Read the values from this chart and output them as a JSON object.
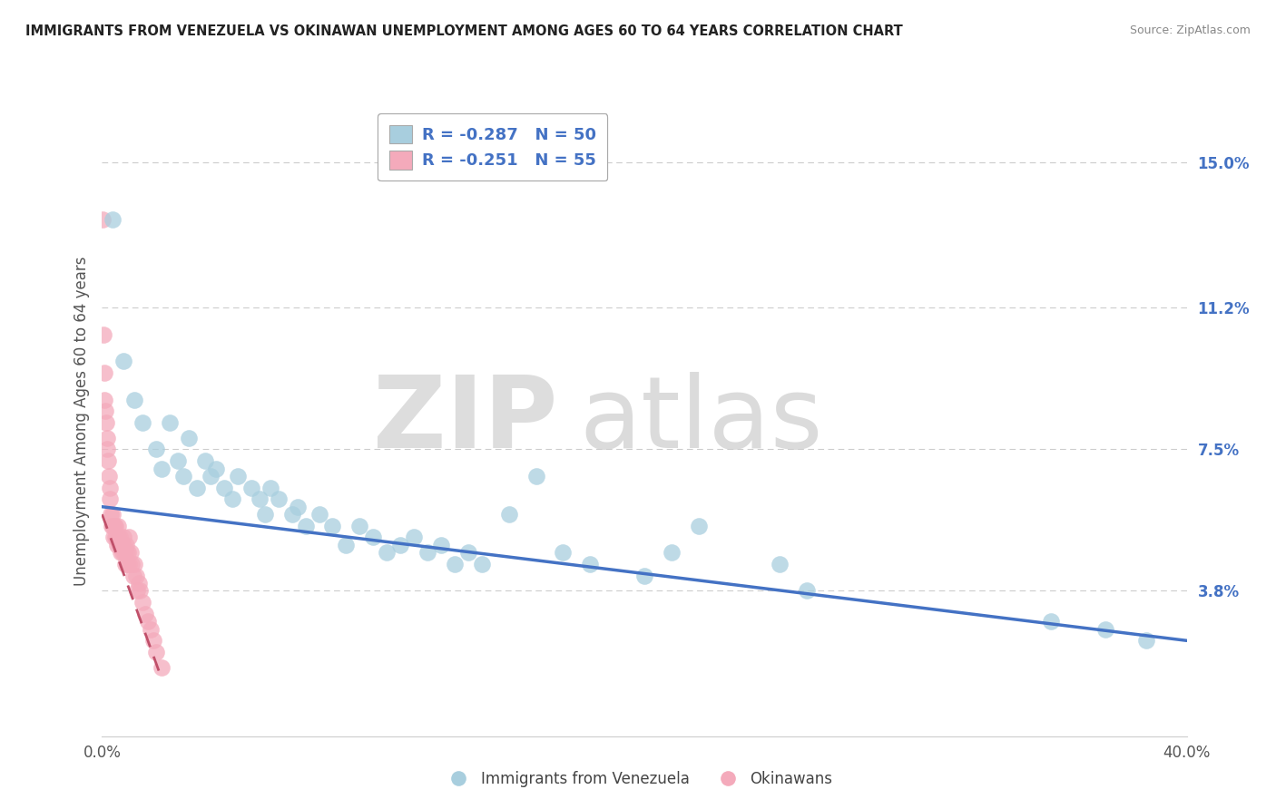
{
  "title": "IMMIGRANTS FROM VENEZUELA VS OKINAWAN UNEMPLOYMENT AMONG AGES 60 TO 64 YEARS CORRELATION CHART",
  "source": "Source: ZipAtlas.com",
  "ylabel": "Unemployment Among Ages 60 to 64 years",
  "y_ticks_right": [
    3.8,
    7.5,
    11.2,
    15.0
  ],
  "y_ticks_labels": [
    "3.8%",
    "7.5%",
    "11.2%",
    "15.0%"
  ],
  "xlim": [
    0.0,
    40.0
  ],
  "ylim": [
    0.0,
    16.5
  ],
  "legend_blue_r": "R = -0.287",
  "legend_blue_n": "N = 50",
  "legend_pink_r": "R = -0.251",
  "legend_pink_n": "N = 55",
  "legend_blue_label": "Immigrants from Venezuela",
  "legend_pink_label": "Okinawans",
  "blue_color": "#A8CEDE",
  "pink_color": "#F4AABB",
  "trend_blue_color": "#4472C4",
  "trend_pink_color": "#C0506A",
  "blue_scatter": [
    [
      0.4,
      13.5
    ],
    [
      0.8,
      9.8
    ],
    [
      1.2,
      8.8
    ],
    [
      1.5,
      8.2
    ],
    [
      2.0,
      7.5
    ],
    [
      2.2,
      7.0
    ],
    [
      2.5,
      8.2
    ],
    [
      2.8,
      7.2
    ],
    [
      3.0,
      6.8
    ],
    [
      3.2,
      7.8
    ],
    [
      3.5,
      6.5
    ],
    [
      3.8,
      7.2
    ],
    [
      4.0,
      6.8
    ],
    [
      4.2,
      7.0
    ],
    [
      4.5,
      6.5
    ],
    [
      4.8,
      6.2
    ],
    [
      5.0,
      6.8
    ],
    [
      5.5,
      6.5
    ],
    [
      5.8,
      6.2
    ],
    [
      6.0,
      5.8
    ],
    [
      6.2,
      6.5
    ],
    [
      6.5,
      6.2
    ],
    [
      7.0,
      5.8
    ],
    [
      7.2,
      6.0
    ],
    [
      7.5,
      5.5
    ],
    [
      8.0,
      5.8
    ],
    [
      8.5,
      5.5
    ],
    [
      9.0,
      5.0
    ],
    [
      9.5,
      5.5
    ],
    [
      10.0,
      5.2
    ],
    [
      10.5,
      4.8
    ],
    [
      11.0,
      5.0
    ],
    [
      11.5,
      5.2
    ],
    [
      12.0,
      4.8
    ],
    [
      12.5,
      5.0
    ],
    [
      13.0,
      4.5
    ],
    [
      13.5,
      4.8
    ],
    [
      14.0,
      4.5
    ],
    [
      15.0,
      5.8
    ],
    [
      16.0,
      6.8
    ],
    [
      17.0,
      4.8
    ],
    [
      18.0,
      4.5
    ],
    [
      20.0,
      4.2
    ],
    [
      21.0,
      4.8
    ],
    [
      22.0,
      5.5
    ],
    [
      25.0,
      4.5
    ],
    [
      26.0,
      3.8
    ],
    [
      35.0,
      3.0
    ],
    [
      37.0,
      2.8
    ],
    [
      38.5,
      2.5
    ]
  ],
  "pink_scatter": [
    [
      0.02,
      13.5
    ],
    [
      0.05,
      10.5
    ],
    [
      0.08,
      9.5
    ],
    [
      0.1,
      8.8
    ],
    [
      0.12,
      8.5
    ],
    [
      0.15,
      8.2
    ],
    [
      0.18,
      7.8
    ],
    [
      0.2,
      7.5
    ],
    [
      0.22,
      7.2
    ],
    [
      0.25,
      6.8
    ],
    [
      0.28,
      6.5
    ],
    [
      0.3,
      6.2
    ],
    [
      0.32,
      5.8
    ],
    [
      0.35,
      5.5
    ],
    [
      0.38,
      5.8
    ],
    [
      0.4,
      5.5
    ],
    [
      0.42,
      5.2
    ],
    [
      0.45,
      5.5
    ],
    [
      0.48,
      5.2
    ],
    [
      0.5,
      5.5
    ],
    [
      0.52,
      5.2
    ],
    [
      0.55,
      5.0
    ],
    [
      0.58,
      5.2
    ],
    [
      0.6,
      5.5
    ],
    [
      0.62,
      5.0
    ],
    [
      0.65,
      5.2
    ],
    [
      0.68,
      5.0
    ],
    [
      0.7,
      4.8
    ],
    [
      0.72,
      5.0
    ],
    [
      0.75,
      4.8
    ],
    [
      0.78,
      5.2
    ],
    [
      0.8,
      5.0
    ],
    [
      0.82,
      4.8
    ],
    [
      0.85,
      4.5
    ],
    [
      0.88,
      5.0
    ],
    [
      0.9,
      4.8
    ],
    [
      0.92,
      4.5
    ],
    [
      0.95,
      4.8
    ],
    [
      0.98,
      4.5
    ],
    [
      1.0,
      5.2
    ],
    [
      1.05,
      4.8
    ],
    [
      1.1,
      4.5
    ],
    [
      1.15,
      4.2
    ],
    [
      1.2,
      4.5
    ],
    [
      1.25,
      4.2
    ],
    [
      1.3,
      3.8
    ],
    [
      1.35,
      4.0
    ],
    [
      1.4,
      3.8
    ],
    [
      1.5,
      3.5
    ],
    [
      1.6,
      3.2
    ],
    [
      1.7,
      3.0
    ],
    [
      1.8,
      2.8
    ],
    [
      1.9,
      2.5
    ],
    [
      2.0,
      2.2
    ],
    [
      2.2,
      1.8
    ]
  ],
  "blue_trend_x": [
    0.0,
    40.0
  ],
  "blue_trend_y": [
    6.0,
    2.5
  ],
  "pink_trend_x": [
    0.0,
    2.2
  ],
  "pink_trend_y": [
    5.8,
    1.5
  ]
}
